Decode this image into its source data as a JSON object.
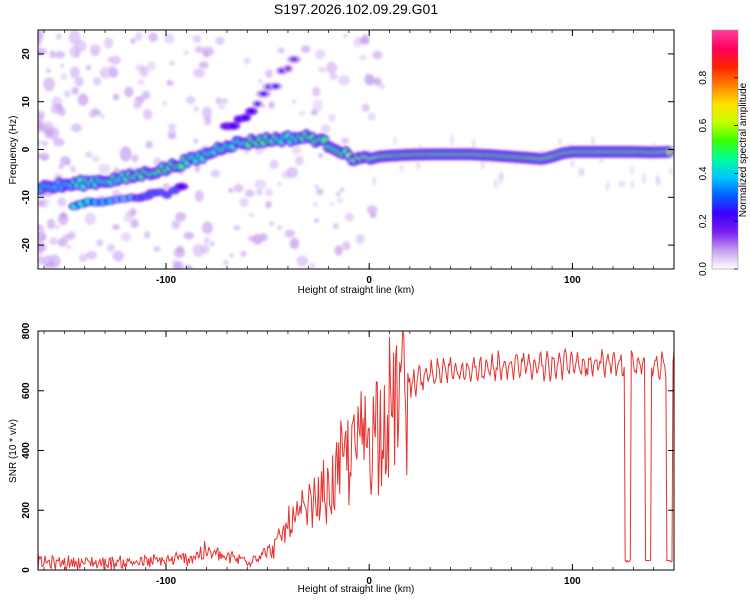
{
  "page_title": "S197.2026.102.09.29.G01",
  "colors": {
    "snr_line": "#e8322e",
    "axis": "#000000",
    "track_core": "#e8323c",
    "track_mid": "#3cd27d",
    "track_edge": "#3c3cc8",
    "scatter": "#c8a0f0"
  },
  "chart_data": [
    {
      "type": "heatmap",
      "title": "",
      "xlabel": "Height of straight line (km)",
      "ylabel": "Frequency (Hz)",
      "xlim": [
        -163,
        150
      ],
      "ylim": [
        -25,
        25
      ],
      "x_ticks": [
        -100,
        0,
        100
      ],
      "x_tick_labels": [
        "-100",
        "0",
        "100"
      ],
      "y_ticks": [
        -20,
        -10,
        0,
        10,
        20
      ],
      "y_tick_labels": [
        "-20",
        "-10",
        "0",
        "10",
        "20"
      ],
      "colorbar": {
        "label": "Normalized spectral amplitude",
        "range": [
          0,
          1
        ],
        "ticks": [
          0.0,
          0.2,
          0.4,
          0.6,
          0.8
        ],
        "tick_labels": [
          "0.0",
          "0.2",
          "0.4",
          "0.6",
          "0.8"
        ],
        "palette": [
          "#ffffff",
          "#c8a0f0",
          "#7a1ef0",
          "#3c00ff",
          "#0060ff",
          "#00c8ff",
          "#00ff9a",
          "#3cff00",
          "#c8ff00",
          "#ffe000",
          "#ff8000",
          "#ff2000",
          "#ff005a",
          "#ff40a0"
        ]
      },
      "track": {
        "x": [
          -163,
          -150,
          -140,
          -130,
          -120,
          -110,
          -100,
          -90,
          -85,
          -80,
          -75,
          -70,
          -65,
          -60,
          -55,
          -50,
          -45,
          -40,
          -35,
          -30,
          -25,
          -20,
          -15,
          -10,
          -5,
          0,
          5,
          10,
          20,
          30,
          40,
          50,
          60,
          70,
          80,
          85,
          90,
          95,
          100,
          110,
          120,
          130,
          140,
          148
        ],
        "y": [
          -8,
          -7.5,
          -7,
          -6.5,
          -6,
          -5,
          -4,
          -2.5,
          -2,
          -1,
          0,
          1,
          1.2,
          1.5,
          1.8,
          2,
          2.2,
          2.3,
          2.4,
          2.6,
          2,
          1,
          0,
          -1.5,
          -2,
          -2,
          -1.5,
          -1.3,
          -1.1,
          -1,
          -1,
          -1,
          -1.2,
          -1.5,
          -1.8,
          -2,
          -1.5,
          -0.8,
          -0.5,
          -0.5,
          -0.5,
          -0.5,
          -0.6,
          -0.5
        ],
        "amplitude": [
          0.35,
          0.4,
          0.45,
          0.45,
          0.5,
          0.5,
          0.55,
          0.5,
          0.45,
          0.5,
          0.45,
          0.45,
          0.45,
          0.5,
          0.5,
          0.5,
          0.5,
          0.45,
          0.5,
          0.55,
          0.55,
          0.55,
          0.5,
          0.6,
          0.7,
          0.65,
          0.75,
          0.8,
          0.85,
          0.85,
          0.85,
          0.85,
          0.9,
          0.9,
          0.8,
          0.75,
          0.8,
          0.85,
          0.9,
          0.9,
          0.9,
          0.85,
          0.85,
          0.8
        ]
      },
      "secondary_branch": {
        "x": [
          -145,
          -130,
          -115,
          -100,
          -90
        ],
        "y": [
          -12,
          -11,
          -10,
          -9,
          -7
        ],
        "amplitude": [
          0.45,
          0.4,
          0.35,
          0.3,
          0.25
        ]
      },
      "upper_branch": {
        "x": [
          -70,
          -60,
          -50,
          -42,
          -36
        ],
        "y": [
          4,
          8,
          12,
          16,
          19
        ],
        "amplitude": [
          0.25,
          0.25,
          0.2,
          0.2,
          0.15
        ]
      }
    },
    {
      "type": "line",
      "title": "",
      "xlabel": "Height of straight line (km)",
      "ylabel": "SNR (10 * v/v)",
      "xlim": [
        -163,
        150
      ],
      "ylim": [
        0,
        800
      ],
      "x_ticks": [
        -100,
        0,
        100
      ],
      "x_tick_labels": [
        "-100",
        "0",
        "100"
      ],
      "y_ticks": [
        0,
        200,
        400,
        600,
        800
      ],
      "y_tick_labels": [
        "0",
        "200",
        "400",
        "600",
        "800"
      ],
      "series": [
        {
          "name": "SNR",
          "envelope_x": [
            -163,
            -140,
            -120,
            -100,
            -90,
            -80,
            -70,
            -60,
            -50,
            -45,
            -40,
            -35,
            -30,
            -25,
            -20,
            -15,
            -10,
            -5,
            0,
            5,
            10,
            15,
            20,
            25,
            30,
            40,
            50,
            60,
            70,
            80,
            90,
            100,
            110,
            120,
            130,
            140,
            150
          ],
          "envelope_y": [
            25,
            25,
            25,
            30,
            40,
            60,
            40,
            35,
            60,
            90,
            150,
            170,
            200,
            230,
            270,
            330,
            380,
            430,
            470,
            510,
            550,
            590,
            620,
            640,
            655,
            665,
            672,
            678,
            682,
            685,
            688,
            690,
            690,
            690,
            690,
            690,
            690
          ],
          "dips": [
            {
              "x_start": 126,
              "x_end": 128.5,
              "y": 30
            },
            {
              "x_start": 136,
              "x_end": 138.5,
              "y": 30
            },
            {
              "x_start": 146.5,
              "x_end": 149,
              "y": 30
            }
          ]
        }
      ]
    }
  ]
}
